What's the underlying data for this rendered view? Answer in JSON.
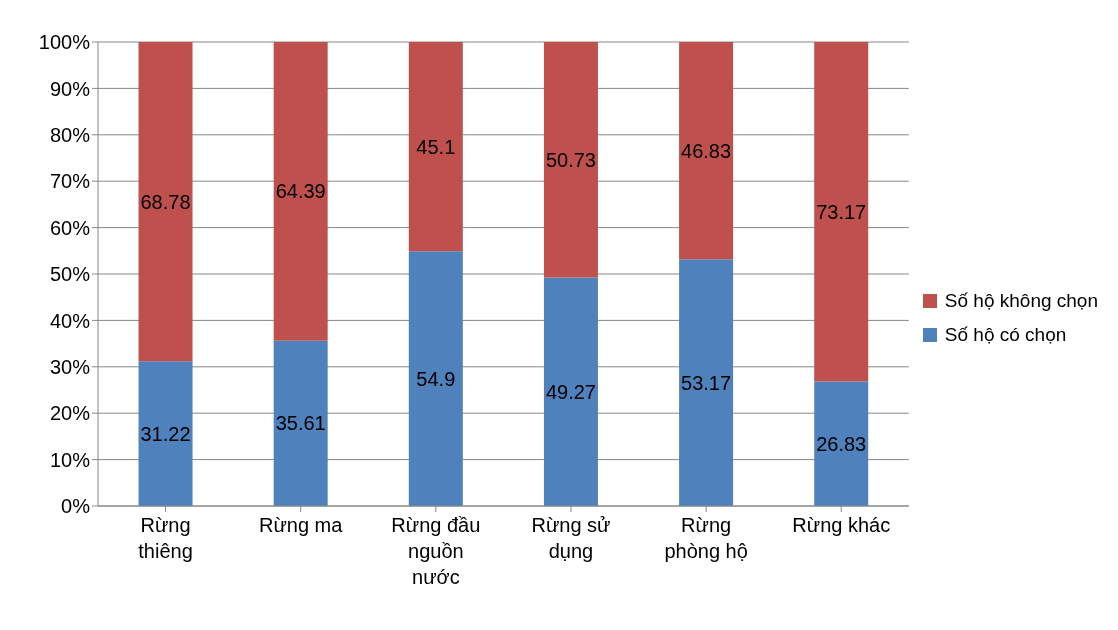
{
  "chart_data": {
    "type": "bar",
    "stacked": true,
    "categories": [
      "Rừng thiêng",
      "Rừng ma",
      "Rừng đầu nguồn nước",
      "Rừng sử dụng",
      "Rừng phòng hộ",
      "Rừng khác"
    ],
    "series": [
      {
        "name": "Số hộ có chọn",
        "color": "#4f81bd",
        "values": [
          31.22,
          35.61,
          54.9,
          49.27,
          53.17,
          26.83
        ]
      },
      {
        "name": "Số hộ không chọn",
        "color": "#c0504d",
        "values": [
          68.78,
          64.39,
          45.1,
          50.73,
          46.83,
          73.17
        ]
      }
    ],
    "ylim": [
      0,
      100
    ],
    "yticks": [
      {
        "value": 0,
        "label": "0%"
      },
      {
        "value": 10,
        "label": "10%"
      },
      {
        "value": 20,
        "label": "20%"
      },
      {
        "value": 30,
        "label": "30%"
      },
      {
        "value": 40,
        "label": "40%"
      },
      {
        "value": 50,
        "label": "50%"
      },
      {
        "value": 60,
        "label": "60%"
      },
      {
        "value": 70,
        "label": "70%"
      },
      {
        "value": 80,
        "label": "80%"
      },
      {
        "value": 90,
        "label": "90%"
      },
      {
        "value": 100,
        "label": "100%"
      }
    ],
    "grid": "y",
    "legend": "right",
    "data_labels": true
  }
}
